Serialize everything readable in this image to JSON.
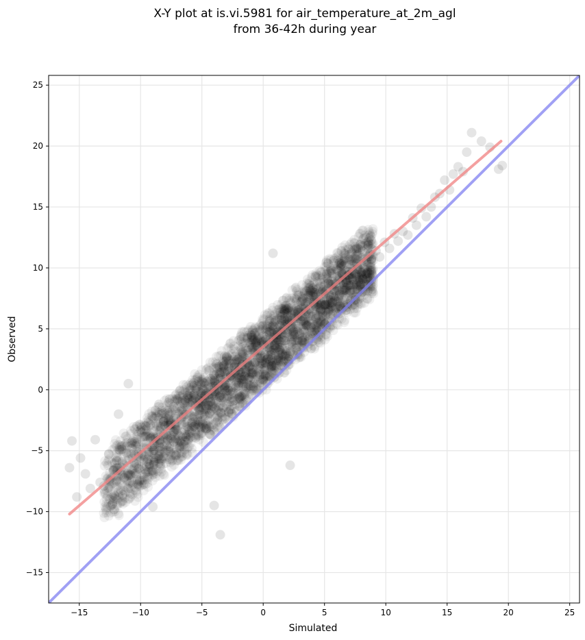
{
  "chart_data": {
    "type": "scatter",
    "title_line1": "X-Y plot at is.vi.5981 for air_temperature_at_2m_agl",
    "title_line2": "from 36-42h during year",
    "xlabel": "Simulated",
    "ylabel": "Observed",
    "xlim": [
      -17.5,
      25.8
    ],
    "ylim": [
      -17.5,
      25.8
    ],
    "xticks": [
      -15,
      -10,
      -5,
      0,
      5,
      10,
      15,
      20,
      25
    ],
    "yticks": [
      -15,
      -10,
      -5,
      0,
      5,
      10,
      15,
      20,
      25
    ],
    "xtick_labels": [
      "−15",
      "−10",
      "−5",
      "0",
      "5",
      "10",
      "15",
      "20",
      "25"
    ],
    "ytick_labels": [
      "−15",
      "−10",
      "−5",
      "0",
      "5",
      "10",
      "15",
      "20",
      "25"
    ],
    "grid": true,
    "point_color": "#000000",
    "point_alpha": 0.06,
    "series": [
      {
        "kind": "scatter",
        "x": [
          -15.8,
          -15.6,
          -15.2,
          -14.9,
          -14.5,
          -14.1,
          -13.7,
          -13.3,
          -13.0,
          -12.6,
          -12.2,
          -11.8,
          -11.5,
          -11.1,
          -10.7,
          -10.3,
          -10.0,
          -9.6,
          -9.2,
          -8.8,
          -8.5,
          -8.1,
          -7.7,
          -7.3,
          -7.0,
          -6.6,
          -6.2,
          -5.8,
          -5.5,
          -5.1,
          -4.7,
          -4.3,
          -4.0,
          -3.6,
          -3.2,
          -2.8,
          -2.5,
          -2.1,
          -1.7,
          -1.3,
          -1.0,
          -0.6,
          -0.2,
          0.2,
          0.5,
          0.9,
          1.3,
          1.7,
          2.0,
          2.4,
          2.8,
          3.2,
          3.5,
          3.9,
          4.3,
          4.7,
          5.0,
          5.4,
          5.8,
          6.2,
          6.5,
          6.9,
          7.3,
          7.7,
          8.0,
          8.4,
          8.8,
          9.2,
          9.5,
          9.9,
          10.3,
          10.7,
          11.0,
          11.4,
          11.8,
          12.2,
          12.5,
          12.9,
          13.3,
          13.7,
          14.0,
          14.4,
          14.8,
          15.2,
          15.5,
          15.9,
          16.3,
          16.6,
          17.0,
          17.8,
          18.5,
          19.2,
          19.5,
          -12.5,
          -9.0,
          -4.0,
          -3.5,
          -11.0,
          0.8,
          2.2
        ],
        "y": [
          -6.4,
          -4.2,
          -8.8,
          -5.6,
          -6.9,
          -8.1,
          -4.1,
          -7.6,
          -7.9,
          -5.3,
          -6.6,
          -2.0,
          -5.9,
          -4.6,
          -4.8,
          -3.0,
          -3.3,
          -3.8,
          -4.0,
          -1.7,
          -1.2,
          -2.6,
          -2.9,
          -1.4,
          -0.8,
          -0.9,
          -0.7,
          0.4,
          0.1,
          -0.2,
          -1.3,
          0.9,
          1.2,
          1.4,
          2.0,
          1.8,
          1.1,
          2.5,
          3.1,
          2.2,
          3.3,
          3.9,
          2.6,
          4.1,
          4.7,
          3.6,
          4.0,
          5.0,
          5.5,
          5.1,
          4.8,
          6.0,
          6.2,
          5.8,
          7.2,
          6.6,
          7.0,
          7.7,
          8.3,
          8.1,
          8.8,
          9.4,
          9.2,
          10.1,
          9.6,
          10.5,
          9.8,
          11.4,
          10.9,
          12.1,
          11.6,
          12.8,
          12.2,
          13.0,
          12.7,
          14.1,
          13.5,
          14.9,
          14.2,
          15.0,
          15.8,
          16.1,
          17.2,
          16.4,
          17.7,
          18.3,
          17.9,
          19.5,
          21.1,
          20.4,
          19.9,
          18.1,
          18.4,
          -9.0,
          -9.6,
          -9.5,
          -11.9,
          0.5,
          11.2,
          -6.2
        ]
      },
      {
        "kind": "regression-line",
        "color": "#f08080",
        "x": [
          -15.8,
          19.4
        ],
        "y": [
          -10.2,
          20.4
        ]
      },
      {
        "kind": "identity-line",
        "color": "#8080f0",
        "x": [
          -17.5,
          25.8
        ],
        "y": [
          -17.5,
          25.8
        ]
      }
    ]
  }
}
